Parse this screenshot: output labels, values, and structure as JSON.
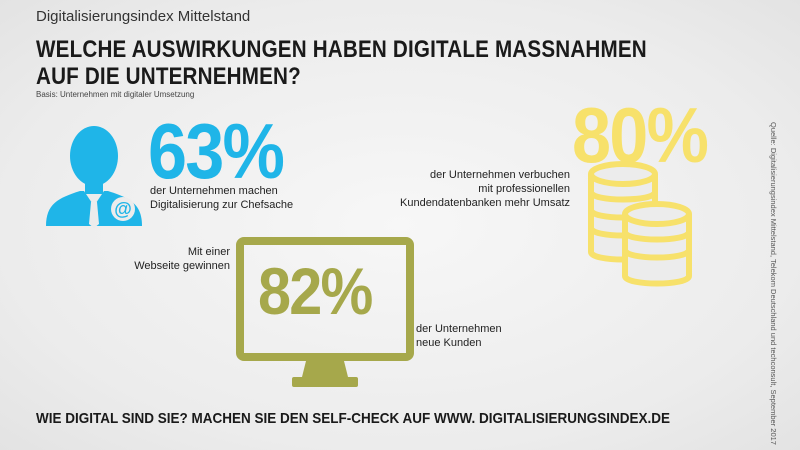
{
  "header": {
    "kicker": "Digitalisierungsindex Mittelstand",
    "headline_line1": "WELCHE AUSWIRKUNGEN HABEN DIGITALE MASSNAHMEN",
    "headline_line2": "AUF DIE UNTERNEHMEN?",
    "basis": "Basis: Unternehmen mit digitaler Umsetzung"
  },
  "stats": [
    {
      "value": "63%",
      "lines": [
        "der Unternehmen machen",
        "Digitalisierung zur Chefsache"
      ],
      "color": "#1fb5e8",
      "icon": "businessman-icon"
    },
    {
      "value": "80%",
      "lines": [
        "der Unternehmen verbuchen",
        "mit professionellen",
        "Kundendatenbanken mehr Umsatz"
      ],
      "color": "#f7e16b",
      "icon": "coin-stack-icon"
    },
    {
      "value": "82%",
      "pre_lines": [
        "Mit einer",
        "Webseite gewinnen"
      ],
      "lines": [
        "der Unternehmen",
        "neue Kunden"
      ],
      "color": "#a6a84b",
      "icon": "monitor-icon"
    }
  ],
  "footer": {
    "cta": "WIE DIGITAL SIND SIE? MACHEN SIE DEN SELF-CHECK AUF WWW. DIGITALISIERUNGSINDEX.DE",
    "source": "Quelle: Digitalisierungsindex Mittelstand, Telekom Deutschland und techconsult, September 2017"
  },
  "icon_labels": {
    "at_sign": "@"
  }
}
